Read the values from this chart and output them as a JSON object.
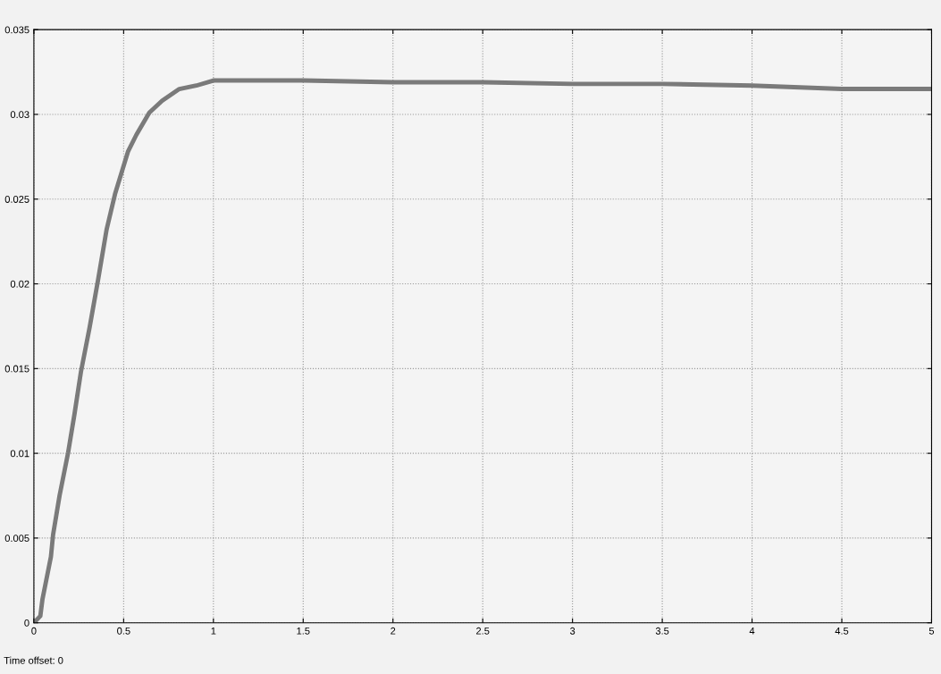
{
  "chart_data": {
    "type": "line",
    "x": [
      0,
      0.036,
      0.048,
      0.095,
      0.107,
      0.143,
      0.19,
      0.226,
      0.262,
      0.31,
      0.357,
      0.405,
      0.452,
      0.524,
      0.571,
      0.643,
      0.714,
      0.81,
      0.905,
      1.0,
      1.12,
      1.5,
      2.0,
      2.5,
      3.0,
      3.5,
      4.0,
      4.5,
      5.0
    ],
    "series": [
      {
        "color": "#7a7a7a",
        "values": [
          0,
          0.0004,
          0.0014,
          0.0039,
          0.0052,
          0.0075,
          0.01,
          0.0123,
          0.0148,
          0.0174,
          0.0202,
          0.0232,
          0.0253,
          0.0278,
          0.0288,
          0.0301,
          0.0308,
          0.0315,
          0.0317,
          0.032,
          0.032,
          0.032,
          0.0319,
          0.0319,
          0.0318,
          0.0318,
          0.0317,
          0.0315,
          0.0315
        ]
      }
    ],
    "xlim": [
      0,
      5
    ],
    "xticks": [
      0,
      0.5,
      1,
      1.5,
      2,
      2.5,
      3,
      3.5,
      4,
      4.5,
      5
    ],
    "ylim": [
      0,
      0.035
    ],
    "yticks": [
      0,
      0.005,
      0.01,
      0.015,
      0.02,
      0.025,
      0.03,
      0.035
    ],
    "grid": true,
    "line_style": "solid",
    "marker": "none",
    "annotations": [
      "Time offset: 0"
    ]
  }
}
